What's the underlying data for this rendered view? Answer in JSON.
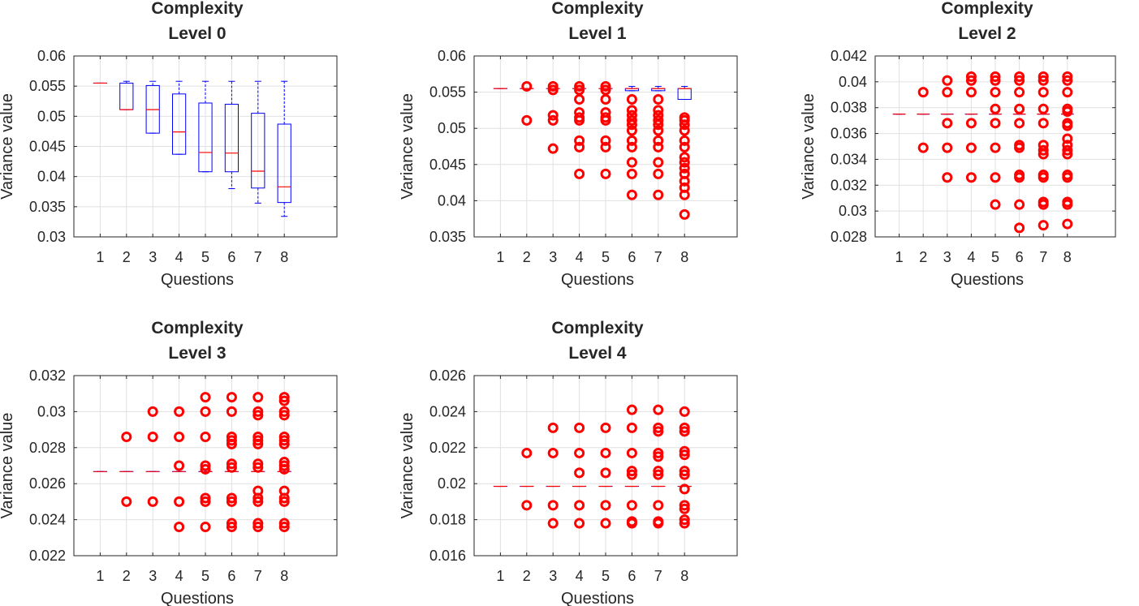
{
  "figure": {
    "xlabel": "Questions",
    "ylabel": "Variance value",
    "colors": {
      "box": "#0000ff",
      "median": "#ff0000",
      "outlier": "#ff0000",
      "grid": "#e0e0e0",
      "axis": "#262626"
    }
  },
  "chart_data": [
    {
      "type": "boxplot",
      "title_line1": "Complexity",
      "title_line2": "Level 0",
      "categories": [
        "1",
        "2",
        "3",
        "4",
        "5",
        "6",
        "7",
        "8"
      ],
      "xlim": [
        0,
        10
      ],
      "ylim": [
        0.03,
        0.06
      ],
      "yticks": [
        "0.03",
        "0.035",
        "0.04",
        "0.045",
        "0.05",
        "0.055",
        "0.06"
      ],
      "grid": true,
      "boxes": [
        {
          "q1": 0.0555,
          "median": 0.0555,
          "q3": 0.0555,
          "wlo": 0.0555,
          "whi": 0.0555
        },
        {
          "q1": 0.0511,
          "median": 0.0511,
          "q3": 0.0555,
          "wlo": 0.0511,
          "whi": 0.0558
        },
        {
          "q1": 0.0472,
          "median": 0.0511,
          "q3": 0.0551,
          "wlo": 0.0472,
          "whi": 0.0558
        },
        {
          "q1": 0.0437,
          "median": 0.0474,
          "q3": 0.0537,
          "wlo": 0.0437,
          "whi": 0.0558
        },
        {
          "q1": 0.0408,
          "median": 0.044,
          "q3": 0.0522,
          "wlo": 0.0408,
          "whi": 0.0558
        },
        {
          "q1": 0.0408,
          "median": 0.0439,
          "q3": 0.052,
          "wlo": 0.038,
          "whi": 0.0558
        },
        {
          "q1": 0.0381,
          "median": 0.0409,
          "q3": 0.0505,
          "wlo": 0.0356,
          "whi": 0.0558
        },
        {
          "q1": 0.0357,
          "median": 0.0383,
          "q3": 0.0487,
          "wlo": 0.0334,
          "whi": 0.0558
        }
      ],
      "outliers": []
    },
    {
      "type": "boxplot",
      "title_line1": "Complexity",
      "title_line2": "Level 1",
      "categories": [
        "1",
        "2",
        "3",
        "4",
        "5",
        "6",
        "7",
        "8"
      ],
      "xlim": [
        0,
        10
      ],
      "ylim": [
        0.035,
        0.06
      ],
      "yticks": [
        "0.035",
        "0.04",
        "0.045",
        "0.05",
        "0.055",
        "0.06"
      ],
      "grid": true,
      "boxes": [
        {
          "q1": 0.0555,
          "median": 0.0555,
          "q3": 0.0555,
          "wlo": 0.0555,
          "whi": 0.0555
        },
        {
          "q1": 0.0555,
          "median": 0.0555,
          "q3": 0.0555,
          "wlo": 0.0555,
          "whi": 0.0555
        },
        {
          "q1": 0.0555,
          "median": 0.0555,
          "q3": 0.0555,
          "wlo": 0.0555,
          "whi": 0.0555
        },
        {
          "q1": 0.0555,
          "median": 0.0555,
          "q3": 0.0555,
          "wlo": 0.0555,
          "whi": 0.0555
        },
        {
          "q1": 0.0555,
          "median": 0.0555,
          "q3": 0.0555,
          "wlo": 0.0555,
          "whi": 0.0555
        },
        {
          "q1": 0.0552,
          "median": 0.0555,
          "q3": 0.0555,
          "wlo": 0.0552,
          "whi": 0.0558
        },
        {
          "q1": 0.0552,
          "median": 0.0555,
          "q3": 0.0555,
          "wlo": 0.0552,
          "whi": 0.0558
        },
        {
          "q1": 0.054,
          "median": 0.0555,
          "q3": 0.0555,
          "wlo": 0.054,
          "whi": 0.0558
        }
      ],
      "outliers": [
        [],
        [
          0.0558,
          0.0511
        ],
        [
          0.0558,
          0.0553,
          0.0518,
          0.0511,
          0.0472
        ],
        [
          0.0558,
          0.0553,
          0.054,
          0.0522,
          0.0515,
          0.0511,
          0.0483,
          0.0474,
          0.0437
        ],
        [
          0.0558,
          0.0553,
          0.054,
          0.0522,
          0.0515,
          0.0511,
          0.0483,
          0.0474,
          0.0437
        ],
        [
          0.054,
          0.0525,
          0.0518,
          0.0511,
          0.0505,
          0.0497,
          0.0483,
          0.0474,
          0.0453,
          0.0437,
          0.0408
        ],
        [
          0.054,
          0.0525,
          0.0518,
          0.0511,
          0.0505,
          0.0497,
          0.0483,
          0.0474,
          0.0453,
          0.0437,
          0.0408
        ],
        [
          0.0515,
          0.0511,
          0.0505,
          0.0497,
          0.0483,
          0.0474,
          0.046,
          0.0453,
          0.0445,
          0.0437,
          0.0427,
          0.0418,
          0.0408,
          0.0381
        ]
      ]
    },
    {
      "type": "boxplot",
      "title_line1": "Complexity",
      "title_line2": "Level 2",
      "categories": [
        "1",
        "2",
        "3",
        "4",
        "5",
        "6",
        "7",
        "8"
      ],
      "xlim": [
        0,
        10
      ],
      "ylim": [
        0.028,
        0.042
      ],
      "yticks": [
        "0.028",
        "0.03",
        "0.032",
        "0.034",
        "0.036",
        "0.038",
        "0.04",
        "0.042"
      ],
      "grid": true,
      "boxes": [
        {
          "q1": 0.0375,
          "median": 0.0375,
          "q3": 0.0375,
          "wlo": 0.0375,
          "whi": 0.0375
        },
        {
          "q1": 0.0375,
          "median": 0.0375,
          "q3": 0.0375,
          "wlo": 0.0375,
          "whi": 0.0375
        },
        {
          "q1": 0.0375,
          "median": 0.0375,
          "q3": 0.0375,
          "wlo": 0.0375,
          "whi": 0.0375
        },
        {
          "q1": 0.0375,
          "median": 0.0375,
          "q3": 0.0375,
          "wlo": 0.0375,
          "whi": 0.0375
        },
        {
          "q1": 0.0375,
          "median": 0.0375,
          "q3": 0.0375,
          "wlo": 0.0375,
          "whi": 0.0375
        },
        {
          "q1": 0.0375,
          "median": 0.0375,
          "q3": 0.0375,
          "wlo": 0.0375,
          "whi": 0.0375
        },
        {
          "q1": 0.0375,
          "median": 0.0375,
          "q3": 0.0375,
          "wlo": 0.0375,
          "whi": 0.0375
        },
        {
          "q1": 0.0375,
          "median": 0.0375,
          "q3": 0.0375,
          "wlo": 0.0375,
          "whi": 0.0375
        }
      ],
      "outliers": [
        [],
        [
          0.0392,
          0.0349
        ],
        [
          0.0401,
          0.0392,
          0.0368,
          0.0349,
          0.0326
        ],
        [
          0.0404,
          0.0401,
          0.0392,
          0.0368,
          0.0349,
          0.0326
        ],
        [
          0.0404,
          0.0401,
          0.0392,
          0.0379,
          0.0368,
          0.0349,
          0.0326,
          0.0305
        ],
        [
          0.0404,
          0.0401,
          0.0392,
          0.0379,
          0.0368,
          0.0351,
          0.0349,
          0.0328,
          0.0326,
          0.0305,
          0.0287
        ],
        [
          0.0404,
          0.0401,
          0.0392,
          0.0379,
          0.0368,
          0.0351,
          0.0347,
          0.0344,
          0.0328,
          0.0326,
          0.0307,
          0.0305,
          0.0289
        ],
        [
          0.0404,
          0.0401,
          0.0392,
          0.0379,
          0.0377,
          0.0368,
          0.0366,
          0.0356,
          0.0351,
          0.0347,
          0.0344,
          0.0328,
          0.0326,
          0.0307,
          0.0305,
          0.029
        ]
      ]
    },
    {
      "type": "boxplot",
      "title_line1": "Complexity",
      "title_line2": "Level 3",
      "categories": [
        "1",
        "2",
        "3",
        "4",
        "5",
        "6",
        "7",
        "8"
      ],
      "xlim": [
        0,
        10
      ],
      "ylim": [
        0.022,
        0.032
      ],
      "yticks": [
        "0.022",
        "0.024",
        "0.026",
        "0.028",
        "0.03",
        "0.032"
      ],
      "grid": true,
      "boxes": [
        {
          "q1": 0.02667,
          "median": 0.02667,
          "q3": 0.02667,
          "wlo": 0.02667,
          "whi": 0.02667
        },
        {
          "q1": 0.02667,
          "median": 0.02667,
          "q3": 0.02667,
          "wlo": 0.02667,
          "whi": 0.02667
        },
        {
          "q1": 0.02667,
          "median": 0.02667,
          "q3": 0.02667,
          "wlo": 0.02667,
          "whi": 0.02667
        },
        {
          "q1": 0.02667,
          "median": 0.02667,
          "q3": 0.02667,
          "wlo": 0.02667,
          "whi": 0.02667
        },
        {
          "q1": 0.02667,
          "median": 0.02667,
          "q3": 0.02667,
          "wlo": 0.02667,
          "whi": 0.02667
        },
        {
          "q1": 0.02667,
          "median": 0.02667,
          "q3": 0.02667,
          "wlo": 0.02667,
          "whi": 0.02667
        },
        {
          "q1": 0.02667,
          "median": 0.02667,
          "q3": 0.02667,
          "wlo": 0.02667,
          "whi": 0.02667
        },
        {
          "q1": 0.02667,
          "median": 0.02667,
          "q3": 0.02667,
          "wlo": 0.02667,
          "whi": 0.02667
        }
      ],
      "outliers": [
        [],
        [
          0.0286,
          0.025
        ],
        [
          0.03,
          0.0286,
          0.025
        ],
        [
          0.03,
          0.0286,
          0.027,
          0.025,
          0.0236
        ],
        [
          0.0308,
          0.03,
          0.0286,
          0.027,
          0.0268,
          0.0252,
          0.025,
          0.0236
        ],
        [
          0.0308,
          0.03,
          0.0286,
          0.0284,
          0.0282,
          0.0271,
          0.0269,
          0.0252,
          0.025,
          0.0238,
          0.0236
        ],
        [
          0.0308,
          0.03,
          0.0298,
          0.0286,
          0.0284,
          0.0282,
          0.0271,
          0.0269,
          0.0256,
          0.0252,
          0.025,
          0.0238,
          0.0236
        ],
        [
          0.0308,
          0.0306,
          0.03,
          0.0298,
          0.0286,
          0.0284,
          0.0282,
          0.0272,
          0.027,
          0.0268,
          0.0256,
          0.0252,
          0.025,
          0.0238,
          0.0236
        ]
      ]
    },
    {
      "type": "boxplot",
      "title_line1": "Complexity",
      "title_line2": "Level 4",
      "categories": [
        "1",
        "2",
        "3",
        "4",
        "5",
        "6",
        "7",
        "8"
      ],
      "xlim": [
        0,
        10
      ],
      "ylim": [
        0.016,
        0.026
      ],
      "yticks": [
        "0.016",
        "0.018",
        "0.02",
        "0.022",
        "0.024",
        "0.026"
      ],
      "grid": true,
      "boxes": [
        {
          "q1": 0.01985,
          "median": 0.01985,
          "q3": 0.01985,
          "wlo": 0.01985,
          "whi": 0.01985
        },
        {
          "q1": 0.01985,
          "median": 0.01985,
          "q3": 0.01985,
          "wlo": 0.01985,
          "whi": 0.01985
        },
        {
          "q1": 0.01985,
          "median": 0.01985,
          "q3": 0.01985,
          "wlo": 0.01985,
          "whi": 0.01985
        },
        {
          "q1": 0.01985,
          "median": 0.01985,
          "q3": 0.01985,
          "wlo": 0.01985,
          "whi": 0.01985
        },
        {
          "q1": 0.01985,
          "median": 0.01985,
          "q3": 0.01985,
          "wlo": 0.01985,
          "whi": 0.01985
        },
        {
          "q1": 0.01985,
          "median": 0.01985,
          "q3": 0.01985,
          "wlo": 0.01985,
          "whi": 0.01985
        },
        {
          "q1": 0.01985,
          "median": 0.01985,
          "q3": 0.01985,
          "wlo": 0.01985,
          "whi": 0.01985
        },
        {
          "q1": 0.01985,
          "median": 0.01985,
          "q3": 0.01985,
          "wlo": 0.01985,
          "whi": 0.01985
        }
      ],
      "outliers": [
        [],
        [
          0.0217,
          0.0188
        ],
        [
          0.0231,
          0.0217,
          0.0188,
          0.0178
        ],
        [
          0.0231,
          0.0217,
          0.0206,
          0.0188,
          0.0178
        ],
        [
          0.0231,
          0.0217,
          0.0206,
          0.0188,
          0.0178
        ],
        [
          0.0241,
          0.0231,
          0.0217,
          0.0207,
          0.0205,
          0.0188,
          0.0179,
          0.0178
        ],
        [
          0.0241,
          0.0231,
          0.0229,
          0.0217,
          0.0215,
          0.0207,
          0.0205,
          0.0188,
          0.0179,
          0.0178
        ],
        [
          0.024,
          0.0231,
          0.0229,
          0.0218,
          0.0216,
          0.0207,
          0.0205,
          0.0197,
          0.0188,
          0.0186,
          0.018,
          0.0178
        ]
      ]
    }
  ]
}
